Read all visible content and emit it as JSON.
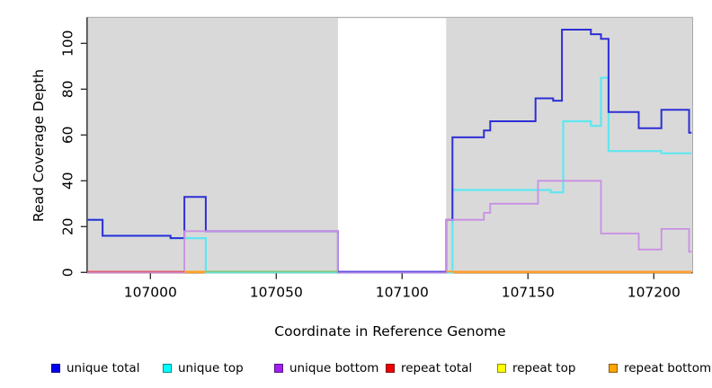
{
  "chart_data": {
    "type": "line",
    "subtype": "step-coverage-plot",
    "title": "",
    "xlabel": "Coordinate in Reference Genome",
    "ylabel": "Read Coverage Depth",
    "xlim": [
      106975,
      107215
    ],
    "ylim": [
      0,
      111
    ],
    "grid": false,
    "plot_background": "#d9d9d9",
    "gap_band": {
      "from": 107074.5,
      "to": 107117.5,
      "color": "#ffffff"
    },
    "x_ticks": [
      {
        "value": 107000,
        "label": "107000"
      },
      {
        "value": 107050,
        "label": "107050"
      },
      {
        "value": 107100,
        "label": "107100"
      },
      {
        "value": 107150,
        "label": "107150"
      },
      {
        "value": 107200,
        "label": "107200"
      }
    ],
    "y_ticks": [
      {
        "value": 0,
        "label": "0"
      },
      {
        "value": 20,
        "label": "20"
      },
      {
        "value": 40,
        "label": "40"
      },
      {
        "value": 60,
        "label": "60"
      },
      {
        "value": 80,
        "label": "80"
      },
      {
        "value": 100,
        "label": "100"
      }
    ],
    "series": [
      {
        "name": "repeat total",
        "line_color": "#e0607a",
        "width": 1.6,
        "points": [
          [
            106975,
            0
          ],
          [
            107215,
            0
          ]
        ]
      },
      {
        "name": "repeat top",
        "line_color": "#e8e84a",
        "width": 1.6,
        "points": [
          [
            106975,
            0
          ],
          [
            107215,
            0
          ]
        ]
      },
      {
        "name": "repeat bottom",
        "line_color": "#ff9d2e",
        "width": 1.6,
        "points": [
          [
            106975,
            0
          ],
          [
            107215,
            0
          ]
        ]
      },
      {
        "name": "unique top",
        "line_color": "#5fe7f0",
        "width": 2.2,
        "points": [
          [
            106975,
            23
          ],
          [
            106981,
            16
          ],
          [
            107008,
            15
          ],
          [
            107022,
            0
          ],
          [
            107120,
            36
          ],
          [
            107159,
            35
          ],
          [
            107164,
            66
          ],
          [
            107175,
            64
          ],
          [
            107179,
            85
          ],
          [
            107182,
            53
          ],
          [
            107203,
            52
          ],
          [
            107215,
            52
          ]
        ]
      },
      {
        "name": "unique total",
        "line_color": "#2e2ed6",
        "width": 2,
        "points": [
          [
            106975,
            23
          ],
          [
            106981,
            16
          ],
          [
            107008,
            15
          ],
          [
            107013.5,
            33
          ],
          [
            107022,
            18
          ],
          [
            107074.5,
            0
          ],
          [
            107117.5,
            23
          ],
          [
            107120,
            59
          ],
          [
            107132.5,
            62
          ],
          [
            107135,
            66
          ],
          [
            107153,
            76
          ],
          [
            107160,
            75
          ],
          [
            107163.5,
            106
          ],
          [
            107175,
            104
          ],
          [
            107179,
            102
          ],
          [
            107182,
            70
          ],
          [
            107194,
            63
          ],
          [
            107203,
            71
          ],
          [
            107214,
            61
          ],
          [
            107215,
            61
          ]
        ]
      },
      {
        "name": "unique bottom",
        "line_color": "#c88fe4",
        "width": 1.8,
        "points": [
          [
            106975,
            0
          ],
          [
            107013.5,
            18
          ],
          [
            107022,
            18
          ],
          [
            107074.5,
            0
          ],
          [
            107117.5,
            23
          ],
          [
            107132.5,
            26
          ],
          [
            107135,
            30
          ],
          [
            107154,
            40
          ],
          [
            107179,
            17
          ],
          [
            107194,
            10
          ],
          [
            107203,
            19
          ],
          [
            107214,
            9
          ],
          [
            107215,
            9
          ]
        ]
      }
    ],
    "baseline_segments": [
      {
        "from": 106975,
        "to": 107013.5,
        "color": "#e0607a"
      },
      {
        "from": 107013.5,
        "to": 107022,
        "color": "#ffa024"
      },
      {
        "from": 107022,
        "to": 107074.5,
        "color": "#7ec87e"
      },
      {
        "from": 107074.5,
        "to": 107117.5,
        "color": "#6a52e0"
      },
      {
        "from": 107117.5,
        "to": 107215,
        "color": "#ff9d2e"
      }
    ],
    "legend": [
      {
        "label": "unique total",
        "color": "#0000ee"
      },
      {
        "label": "unique top",
        "color": "#00ffff"
      },
      {
        "label": "unique bottom",
        "color": "#a020f0"
      },
      {
        "label": "repeat total",
        "color": "#ee0000"
      },
      {
        "label": "repeat top",
        "color": "#ffff00"
      },
      {
        "label": "repeat bottom",
        "color": "#ffa500"
      }
    ],
    "legend_position": "bottom"
  }
}
